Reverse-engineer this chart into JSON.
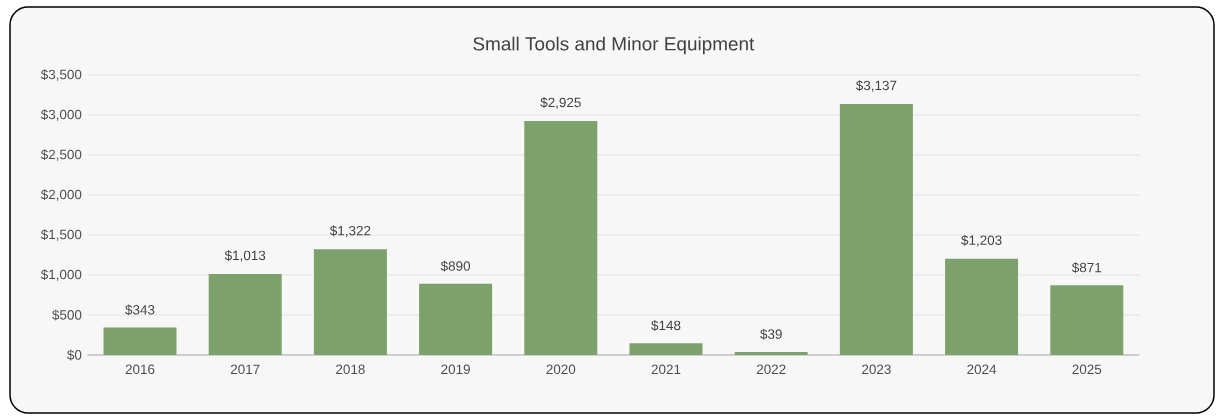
{
  "chart_data": {
    "type": "bar",
    "title": "Small Tools and Minor Equipment",
    "categories": [
      "2016",
      "2017",
      "2018",
      "2019",
      "2020",
      "2021",
      "2022",
      "2023",
      "2024",
      "2025"
    ],
    "values": [
      343,
      1013,
      1322,
      890,
      2925,
      148,
      39,
      3137,
      1203,
      871
    ],
    "value_labels": [
      "$343",
      "$1,013",
      "$1,322",
      "$890",
      "$2,925",
      "$148",
      "$39",
      "$3,137",
      "$1,203",
      "$871"
    ],
    "color": "#7da16a",
    "ylim": [
      0,
      3500
    ],
    "yticks": [
      {
        "value": 0,
        "label": "$0"
      },
      {
        "value": 500,
        "label": "$500"
      },
      {
        "value": 1000,
        "label": "$1,000"
      },
      {
        "value": 1500,
        "label": "$1,500"
      },
      {
        "value": 2000,
        "label": "$2,000"
      },
      {
        "value": 2500,
        "label": "$2,500"
      },
      {
        "value": 3000,
        "label": "$3,000"
      },
      {
        "value": 3500,
        "label": "$3,500"
      }
    ],
    "grid": "y"
  }
}
